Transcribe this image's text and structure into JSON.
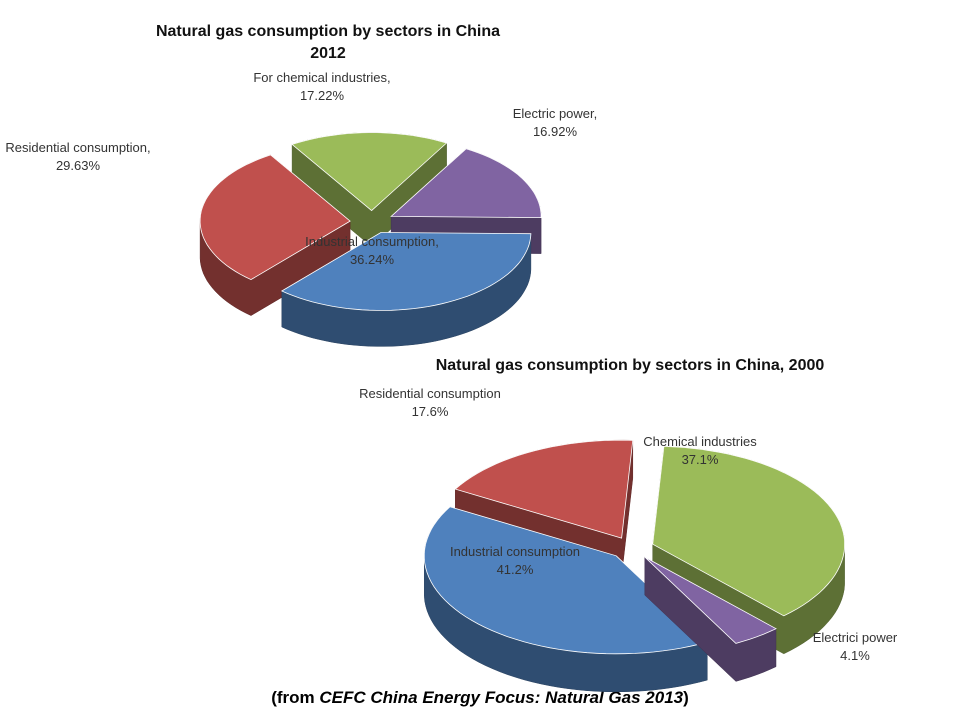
{
  "chart_data": [
    {
      "type": "pie3d",
      "title": "Natural gas consumption by sectors in China",
      "subtitle": "2012",
      "categories": [
        "For chemical industries,",
        "Electric power,",
        "Industrial consumption,",
        "Residential consumption,"
      ],
      "values": [
        17.22,
        16.92,
        36.24,
        29.63
      ],
      "value_labels": [
        "17.22%",
        "16.92%",
        "36.24%",
        "29.63%"
      ],
      "colors": [
        "#9bbb59",
        "#8064a2",
        "#4f81bd",
        "#c0504d"
      ]
    },
    {
      "type": "pie3d",
      "title": "Natural gas consumption by sectors in China, 2000",
      "categories": [
        "Residential consumption",
        "Chemical industries",
        "Electrici power",
        "Industrial consumption"
      ],
      "values": [
        17.6,
        37.1,
        4.1,
        41.2
      ],
      "value_labels": [
        "17.6%",
        "37.1%",
        "4.1%",
        "41.2%"
      ],
      "colors": [
        "#c0504d",
        "#9bbb59",
        "#8064a2",
        "#4f81bd"
      ]
    }
  ],
  "caption": {
    "prefix": "(from ",
    "source": "CEFC China Energy Focus: Natural Gas 2013",
    "suffix": ")"
  }
}
